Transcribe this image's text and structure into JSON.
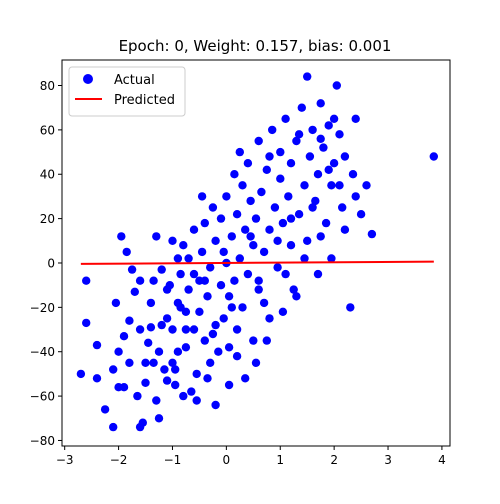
{
  "chart_data": {
    "type": "scatter",
    "title": "Epoch: 0, Weight: 0.157, bias: 0.001",
    "xlabel": "",
    "ylabel": "",
    "xlim": [
      -3.05,
      4.15
    ],
    "ylim": [
      -82.5,
      91.5
    ],
    "xticks": [
      -3,
      -2,
      -1,
      0,
      1,
      2,
      3,
      4
    ],
    "yticks": [
      -80,
      -60,
      -40,
      -20,
      0,
      20,
      40,
      60,
      80
    ],
    "grid": false,
    "legend_position": "top-left",
    "series": [
      {
        "name": "Actual",
        "kind": "scatter",
        "color": "#0000ff",
        "points": [
          [
            -2.7,
            -50
          ],
          [
            -2.6,
            -27
          ],
          [
            -2.6,
            -8
          ],
          [
            -2.4,
            -37
          ],
          [
            -2.4,
            -52
          ],
          [
            -2.25,
            -66
          ],
          [
            -2.1,
            -48
          ],
          [
            -2.1,
            -74
          ],
          [
            -2.0,
            -56
          ],
          [
            -2.0,
            -40
          ],
          [
            -1.9,
            -56
          ],
          [
            -1.9,
            -33
          ],
          [
            -1.95,
            12
          ],
          [
            -1.8,
            -45
          ],
          [
            -1.8,
            -26
          ],
          [
            -1.75,
            -3
          ],
          [
            -1.7,
            -13
          ],
          [
            -1.6,
            -8
          ],
          [
            -1.6,
            -74
          ],
          [
            -1.55,
            -72
          ],
          [
            -1.5,
            -45
          ],
          [
            -1.5,
            -54
          ],
          [
            -1.45,
            -36
          ],
          [
            -1.4,
            -29
          ],
          [
            -1.4,
            -18
          ],
          [
            -1.35,
            -8
          ],
          [
            -1.3,
            12
          ],
          [
            -1.3,
            -62
          ],
          [
            -1.25,
            -40
          ],
          [
            -1.2,
            -28
          ],
          [
            -1.2,
            -3
          ],
          [
            -1.15,
            -48
          ],
          [
            -1.1,
            -25
          ],
          [
            -1.1,
            -53
          ],
          [
            -1.05,
            -10
          ],
          [
            -1.0,
            -45
          ],
          [
            -1.0,
            -30
          ],
          [
            -1.0,
            10
          ],
          [
            -0.95,
            -55
          ],
          [
            -0.9,
            -18
          ],
          [
            -0.9,
            -40
          ],
          [
            -0.85,
            -5
          ],
          [
            -0.85,
            -20
          ],
          [
            -0.8,
            8
          ],
          [
            -0.75,
            -22
          ],
          [
            -0.75,
            -38
          ],
          [
            -0.7,
            -12
          ],
          [
            -0.7,
            2
          ],
          [
            -0.65,
            -58
          ],
          [
            -0.6,
            -30
          ],
          [
            -0.6,
            15
          ],
          [
            -0.55,
            -50
          ],
          [
            -0.5,
            -8
          ],
          [
            -0.5,
            -22
          ],
          [
            -0.45,
            5
          ],
          [
            -0.4,
            -35
          ],
          [
            -0.4,
            18
          ],
          [
            -0.35,
            -15
          ],
          [
            -0.3,
            -45
          ],
          [
            -0.3,
            -2
          ],
          [
            -0.25,
            25
          ],
          [
            -0.2,
            -28
          ],
          [
            -0.2,
            10
          ],
          [
            -0.15,
            -40
          ],
          [
            -0.1,
            -10
          ],
          [
            -0.1,
            20
          ],
          [
            -0.05,
            -25
          ],
          [
            0.0,
            0
          ],
          [
            0.0,
            30
          ],
          [
            0.05,
            -15
          ],
          [
            0.05,
            -38
          ],
          [
            0.1,
            12
          ],
          [
            0.15,
            -8
          ],
          [
            0.15,
            40
          ],
          [
            0.2,
            22
          ],
          [
            0.2,
            -30
          ],
          [
            0.25,
            2
          ],
          [
            0.3,
            35
          ],
          [
            0.3,
            -20
          ],
          [
            0.35,
            15
          ],
          [
            0.4,
            -5
          ],
          [
            0.4,
            45
          ],
          [
            0.45,
            28
          ],
          [
            0.5,
            8
          ],
          [
            0.5,
            -35
          ],
          [
            0.55,
            20
          ],
          [
            0.6,
            55
          ],
          [
            0.6,
            -12
          ],
          [
            0.65,
            32
          ],
          [
            0.7,
            5
          ],
          [
            0.75,
            42
          ],
          [
            0.8,
            15
          ],
          [
            0.8,
            -25
          ],
          [
            0.85,
            60
          ],
          [
            0.9,
            25
          ],
          [
            0.95,
            -2
          ],
          [
            1.0,
            38
          ],
          [
            1.0,
            50
          ],
          [
            1.05,
            18
          ],
          [
            1.1,
            65
          ],
          [
            1.15,
            30
          ],
          [
            1.2,
            8
          ],
          [
            1.2,
            45
          ],
          [
            1.25,
            -12
          ],
          [
            1.3,
            55
          ],
          [
            1.35,
            22
          ],
          [
            1.4,
            70
          ],
          [
            1.45,
            35
          ],
          [
            1.5,
            84
          ],
          [
            1.5,
            10
          ],
          [
            1.55,
            48
          ],
          [
            1.6,
            60
          ],
          [
            1.65,
            28
          ],
          [
            1.7,
            40
          ],
          [
            1.75,
            72
          ],
          [
            1.8,
            52
          ],
          [
            1.85,
            18
          ],
          [
            1.9,
            62
          ],
          [
            1.95,
            35
          ],
          [
            2.0,
            45
          ],
          [
            2.05,
            80
          ],
          [
            2.1,
            58
          ],
          [
            2.15,
            25
          ],
          [
            2.2,
            48
          ],
          [
            2.3,
            -20
          ],
          [
            2.35,
            40
          ],
          [
            2.4,
            65
          ],
          [
            2.5,
            22
          ],
          [
            2.6,
            35
          ],
          [
            2.7,
            13
          ],
          [
            3.85,
            48
          ],
          [
            -2.05,
            -18
          ],
          [
            -1.85,
            5
          ],
          [
            -1.65,
            -60
          ],
          [
            -1.25,
            -70
          ],
          [
            -0.95,
            -48
          ],
          [
            -0.8,
            -60
          ],
          [
            -0.55,
            -62
          ],
          [
            -0.35,
            -52
          ],
          [
            -0.2,
            -64
          ],
          [
            0.05,
            -55
          ],
          [
            0.35,
            -52
          ],
          [
            0.55,
            -45
          ],
          [
            0.75,
            -35
          ],
          [
            1.05,
            -22
          ],
          [
            1.3,
            -15
          ],
          [
            1.7,
            -5
          ],
          [
            1.95,
            2
          ],
          [
            2.2,
            15
          ],
          [
            2.4,
            30
          ],
          [
            -1.6,
            -30
          ],
          [
            -1.1,
            -12
          ],
          [
            -0.6,
            -5
          ],
          [
            -0.05,
            5
          ],
          [
            0.45,
            12
          ],
          [
            0.95,
            10
          ],
          [
            1.45,
            2
          ],
          [
            1.75,
            12
          ],
          [
            -0.9,
            2
          ],
          [
            -0.4,
            -8
          ],
          [
            0.1,
            -20
          ],
          [
            0.6,
            -8
          ],
          [
            1.1,
            -5
          ],
          [
            1.6,
            25
          ],
          [
            -1.35,
            -45
          ],
          [
            -0.75,
            -30
          ],
          [
            -0.25,
            -32
          ],
          [
            0.2,
            -42
          ],
          [
            0.7,
            -18
          ],
          [
            1.2,
            20
          ],
          [
            1.9,
            42
          ],
          [
            2.1,
            35
          ],
          [
            -0.45,
            30
          ],
          [
            0.25,
            50
          ],
          [
            0.8,
            48
          ],
          [
            1.35,
            58
          ],
          [
            1.75,
            56
          ],
          [
            2.0,
            65
          ]
        ]
      },
      {
        "name": "Predicted",
        "kind": "line",
        "color": "#ff0000",
        "points": [
          [
            -2.7,
            -0.42
          ],
          [
            3.85,
            0.61
          ]
        ]
      }
    ]
  }
}
